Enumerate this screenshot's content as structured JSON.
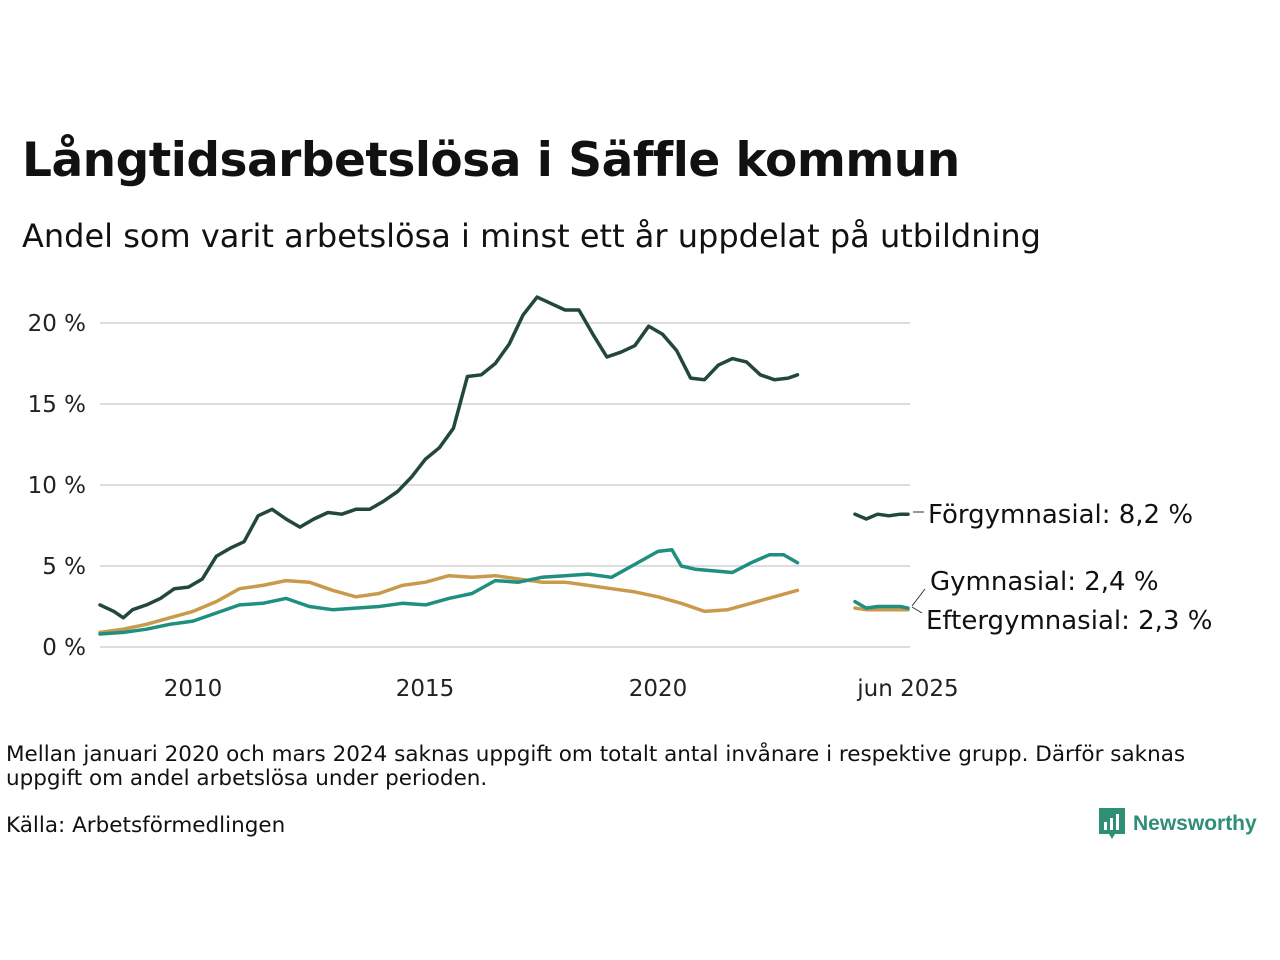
{
  "header": {
    "title": "Långtidsarbetslösa i Säffle kommun",
    "subtitle": "Andel som varit arbetslösa i minst ett år uppdelat på utbildning"
  },
  "footer": {
    "note": "Mellan januari 2020 och mars 2024 saknas uppgift om totalt antal invånare i respektive grupp. Därför saknas uppgift om andel arbetslösa under perioden.",
    "source": "Källa: Arbetsförmedlingen",
    "brand": "Newsworthy",
    "brand_color": "#2e8f74"
  },
  "chart_data": {
    "type": "line",
    "title": "Långtidsarbetslösa i Säffle kommun",
    "subtitle": "Andel som varit arbetslösa i minst ett år uppdelat på utbildning",
    "xlabel": "",
    "ylabel": "",
    "y_ticks": [
      "0 %",
      "5 %",
      "10 %",
      "15 %",
      "20 %"
    ],
    "y_tick_values": [
      0,
      5,
      10,
      15,
      20
    ],
    "x_ticks": [
      "2010",
      "2015",
      "2020"
    ],
    "x_tick_values": [
      2010,
      2015,
      2020
    ],
    "x_end_tick": "jun 2025",
    "ylim": [
      0,
      22
    ],
    "grid": "horizontal",
    "legend": "direct labels at right end",
    "series": [
      {
        "name": "Förgymnasial",
        "end_label": "Förgymnasial: 8,2 %",
        "color": "#22473f",
        "points": [
          [
            2008.0,
            2.6
          ],
          [
            2008.3,
            2.2
          ],
          [
            2008.5,
            1.8
          ],
          [
            2008.7,
            2.3
          ],
          [
            2009.0,
            2.6
          ],
          [
            2009.3,
            3.0
          ],
          [
            2009.6,
            3.6
          ],
          [
            2009.9,
            3.7
          ],
          [
            2010.2,
            4.2
          ],
          [
            2010.5,
            5.6
          ],
          [
            2010.8,
            6.1
          ],
          [
            2011.1,
            6.5
          ],
          [
            2011.4,
            8.1
          ],
          [
            2011.7,
            8.5
          ],
          [
            2012.0,
            7.9
          ],
          [
            2012.3,
            7.4
          ],
          [
            2012.6,
            7.9
          ],
          [
            2012.9,
            8.3
          ],
          [
            2013.2,
            8.2
          ],
          [
            2013.5,
            8.5
          ],
          [
            2013.8,
            8.5
          ],
          [
            2014.1,
            9.0
          ],
          [
            2014.4,
            9.6
          ],
          [
            2014.7,
            10.5
          ],
          [
            2015.0,
            11.6
          ],
          [
            2015.3,
            12.3
          ],
          [
            2015.6,
            13.5
          ],
          [
            2015.9,
            16.7
          ],
          [
            2016.2,
            16.8
          ],
          [
            2016.5,
            17.5
          ],
          [
            2016.8,
            18.7
          ],
          [
            2017.1,
            20.5
          ],
          [
            2017.4,
            21.6
          ],
          [
            2017.7,
            21.2
          ],
          [
            2018.0,
            20.8
          ],
          [
            2018.3,
            20.8
          ],
          [
            2018.6,
            19.3
          ],
          [
            2018.9,
            17.9
          ],
          [
            2019.2,
            18.2
          ],
          [
            2019.5,
            18.6
          ],
          [
            2019.8,
            19.8
          ],
          [
            2020.1,
            19.3
          ],
          [
            2020.4,
            18.3
          ],
          [
            2020.7,
            16.6
          ],
          [
            2021.0,
            16.5
          ],
          [
            2021.3,
            17.4
          ],
          [
            2021.6,
            17.8
          ],
          [
            2021.9,
            17.6
          ],
          [
            2022.2,
            16.8
          ],
          [
            2022.5,
            16.5
          ],
          [
            2022.8,
            16.6
          ],
          [
            2023.0,
            16.8
          ]
        ],
        "end_points": [
          [
            2024.25,
            8.2
          ],
          [
            2024.5,
            7.9
          ],
          [
            2024.75,
            8.2
          ],
          [
            2025.0,
            8.1
          ],
          [
            2025.25,
            8.2
          ],
          [
            2025.42,
            8.2
          ]
        ]
      },
      {
        "name": "Gymnasial",
        "end_label": "Gymnasial: 2,4 %",
        "color": "#1f8f7f",
        "points": [
          [
            2008.0,
            0.8
          ],
          [
            2008.5,
            0.9
          ],
          [
            2009.0,
            1.1
          ],
          [
            2009.5,
            1.4
          ],
          [
            2010.0,
            1.6
          ],
          [
            2010.5,
            2.1
          ],
          [
            2011.0,
            2.6
          ],
          [
            2011.5,
            2.7
          ],
          [
            2012.0,
            3.0
          ],
          [
            2012.5,
            2.5
          ],
          [
            2013.0,
            2.3
          ],
          [
            2013.5,
            2.4
          ],
          [
            2014.0,
            2.5
          ],
          [
            2014.5,
            2.7
          ],
          [
            2015.0,
            2.6
          ],
          [
            2015.5,
            3.0
          ],
          [
            2016.0,
            3.3
          ],
          [
            2016.5,
            4.1
          ],
          [
            2017.0,
            4.0
          ],
          [
            2017.5,
            4.3
          ],
          [
            2018.0,
            4.4
          ],
          [
            2018.5,
            4.5
          ],
          [
            2019.0,
            4.3
          ],
          [
            2019.5,
            5.1
          ],
          [
            2020.0,
            5.9
          ],
          [
            2020.3,
            6.0
          ],
          [
            2020.5,
            5.0
          ],
          [
            2020.8,
            4.8
          ],
          [
            2021.2,
            4.7
          ],
          [
            2021.6,
            4.6
          ],
          [
            2022.0,
            5.2
          ],
          [
            2022.4,
            5.7
          ],
          [
            2022.7,
            5.7
          ],
          [
            2023.0,
            5.2
          ]
        ],
        "end_points": [
          [
            2024.25,
            2.8
          ],
          [
            2024.5,
            2.4
          ],
          [
            2024.75,
            2.5
          ],
          [
            2025.0,
            2.5
          ],
          [
            2025.25,
            2.5
          ],
          [
            2025.42,
            2.4
          ]
        ]
      },
      {
        "name": "Eftergymnasial",
        "end_label": "Eftergymnasial: 2,3 %",
        "color": "#c99a4b",
        "points": [
          [
            2008.0,
            0.9
          ],
          [
            2008.5,
            1.1
          ],
          [
            2009.0,
            1.4
          ],
          [
            2009.5,
            1.8
          ],
          [
            2010.0,
            2.2
          ],
          [
            2010.5,
            2.8
          ],
          [
            2011.0,
            3.6
          ],
          [
            2011.5,
            3.8
          ],
          [
            2012.0,
            4.1
          ],
          [
            2012.5,
            4.0
          ],
          [
            2013.0,
            3.5
          ],
          [
            2013.5,
            3.1
          ],
          [
            2014.0,
            3.3
          ],
          [
            2014.5,
            3.8
          ],
          [
            2015.0,
            4.0
          ],
          [
            2015.5,
            4.4
          ],
          [
            2016.0,
            4.3
          ],
          [
            2016.5,
            4.4
          ],
          [
            2017.0,
            4.2
          ],
          [
            2017.5,
            4.0
          ],
          [
            2018.0,
            4.0
          ],
          [
            2018.5,
            3.8
          ],
          [
            2019.0,
            3.6
          ],
          [
            2019.5,
            3.4
          ],
          [
            2020.0,
            3.1
          ],
          [
            2020.5,
            2.7
          ],
          [
            2021.0,
            2.2
          ],
          [
            2021.5,
            2.3
          ],
          [
            2022.0,
            2.7
          ],
          [
            2022.5,
            3.1
          ],
          [
            2023.0,
            3.5
          ]
        ],
        "end_points": [
          [
            2024.25,
            2.4
          ],
          [
            2024.5,
            2.3
          ],
          [
            2024.75,
            2.3
          ],
          [
            2025.0,
            2.3
          ],
          [
            2025.25,
            2.3
          ],
          [
            2025.42,
            2.3
          ]
        ]
      }
    ]
  }
}
